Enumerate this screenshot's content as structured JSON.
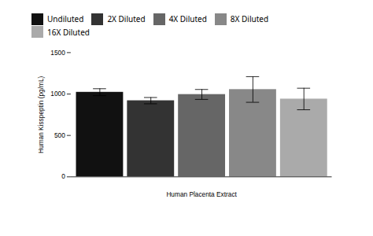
{
  "chart_data": {
    "type": "bar",
    "xlabel": "Human Placenta Extract",
    "ylabel": "Human Kisspeptin (pg/mL)",
    "categories": [
      null
    ],
    "series": [
      {
        "name": "Undiluted",
        "color": "#111111",
        "values": [
          1022
        ],
        "errors": [
          42
        ]
      },
      {
        "name": "2X Diluted",
        "color": "#333333",
        "values": [
          920
        ],
        "errors": [
          38
        ]
      },
      {
        "name": "4X Diluted",
        "color": "#666666",
        "values": [
          995
        ],
        "errors": [
          60
        ]
      },
      {
        "name": "8X Diluted",
        "color": "#888888",
        "values": [
          1055
        ],
        "errors": [
          155
        ]
      },
      {
        "name": "16X Diluted",
        "color": "#aaaaaa",
        "values": [
          940
        ],
        "errors": [
          130
        ]
      }
    ],
    "ylim": [
      0,
      1500
    ],
    "yticks": [
      0,
      500,
      1000,
      1500
    ],
    "legend": "top"
  }
}
